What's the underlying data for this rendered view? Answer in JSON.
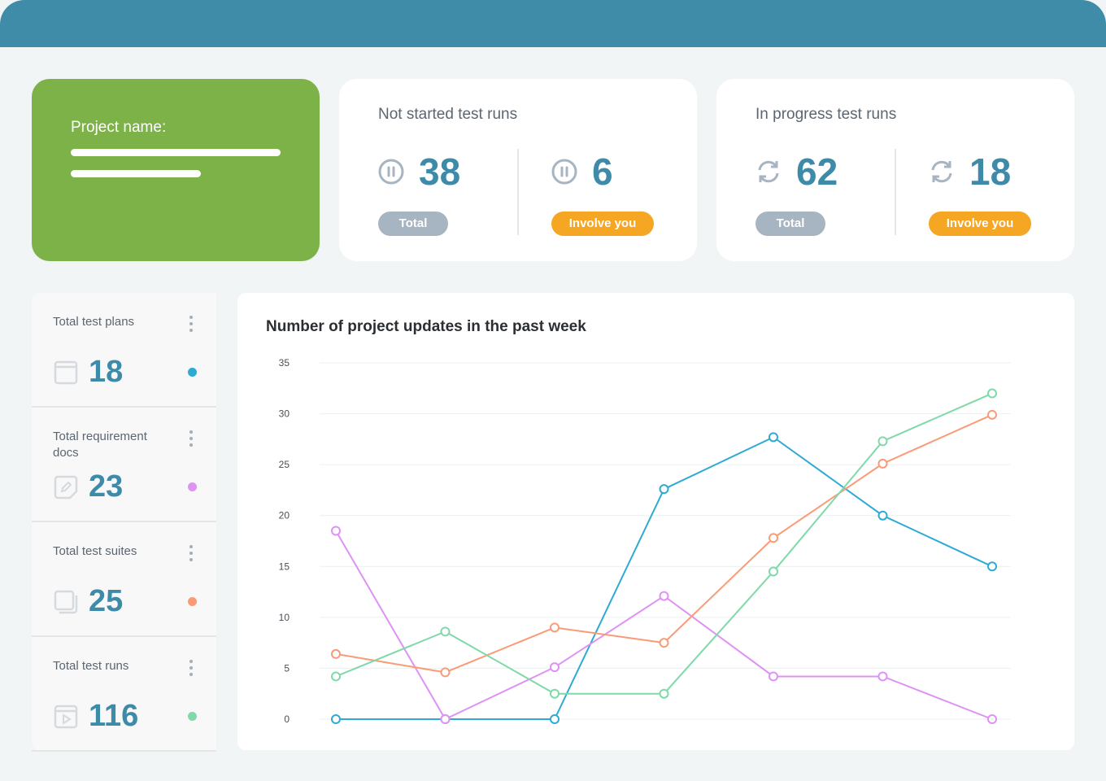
{
  "project": {
    "label": "Project name:"
  },
  "not_started": {
    "title": "Not started test runs",
    "total": "38",
    "involve": "6",
    "total_label": "Total",
    "involve_label": "Involve you",
    "icon": "pause-circle-icon"
  },
  "in_progress": {
    "title": "In progress test runs",
    "total": "62",
    "involve": "18",
    "total_label": "Total",
    "involve_label": "Involve you",
    "icon": "refresh-icon"
  },
  "sidebar": {
    "items": [
      {
        "label": "Total test plans",
        "value": "18",
        "color": "#2eaad4",
        "icon": "window-icon"
      },
      {
        "label": "Total requirement docs",
        "value": "23",
        "color": "#df91f5",
        "icon": "edit-doc-icon"
      },
      {
        "label": "Total test suites",
        "value": "25",
        "color": "#fa9b77",
        "icon": "stack-icon"
      },
      {
        "label": "Total test runs",
        "value": "116",
        "color": "#7fd9a8",
        "icon": "play-icon"
      }
    ]
  },
  "colors": {
    "header": "#3f8ca8",
    "project": "#7db249",
    "accent": "#3d8ba8",
    "orange": "#f5a623",
    "gray": "#a7b4c1"
  },
  "chart_data": {
    "type": "line",
    "title": "Number of project updates in the past week",
    "ylim": [
      0,
      35
    ],
    "yticks": [
      0,
      5,
      10,
      15,
      20,
      25,
      30,
      35
    ],
    "grid": true,
    "x": [
      1,
      2,
      3,
      4,
      5,
      6,
      7
    ],
    "series": [
      {
        "color": "#2eaad4",
        "values": [
          0,
          0,
          0,
          22.6,
          27.7,
          20,
          15
        ]
      },
      {
        "color": "#df91f5",
        "values": [
          18.5,
          0,
          5.1,
          12.1,
          4.2,
          4.2,
          0
        ]
      },
      {
        "color": "#fa9b77",
        "values": [
          6.4,
          4.6,
          9,
          7.5,
          17.8,
          25.1,
          29.9
        ]
      },
      {
        "color": "#7fd9a8",
        "values": [
          4.2,
          8.6,
          2.5,
          2.5,
          14.5,
          27.3,
          32
        ]
      }
    ]
  }
}
